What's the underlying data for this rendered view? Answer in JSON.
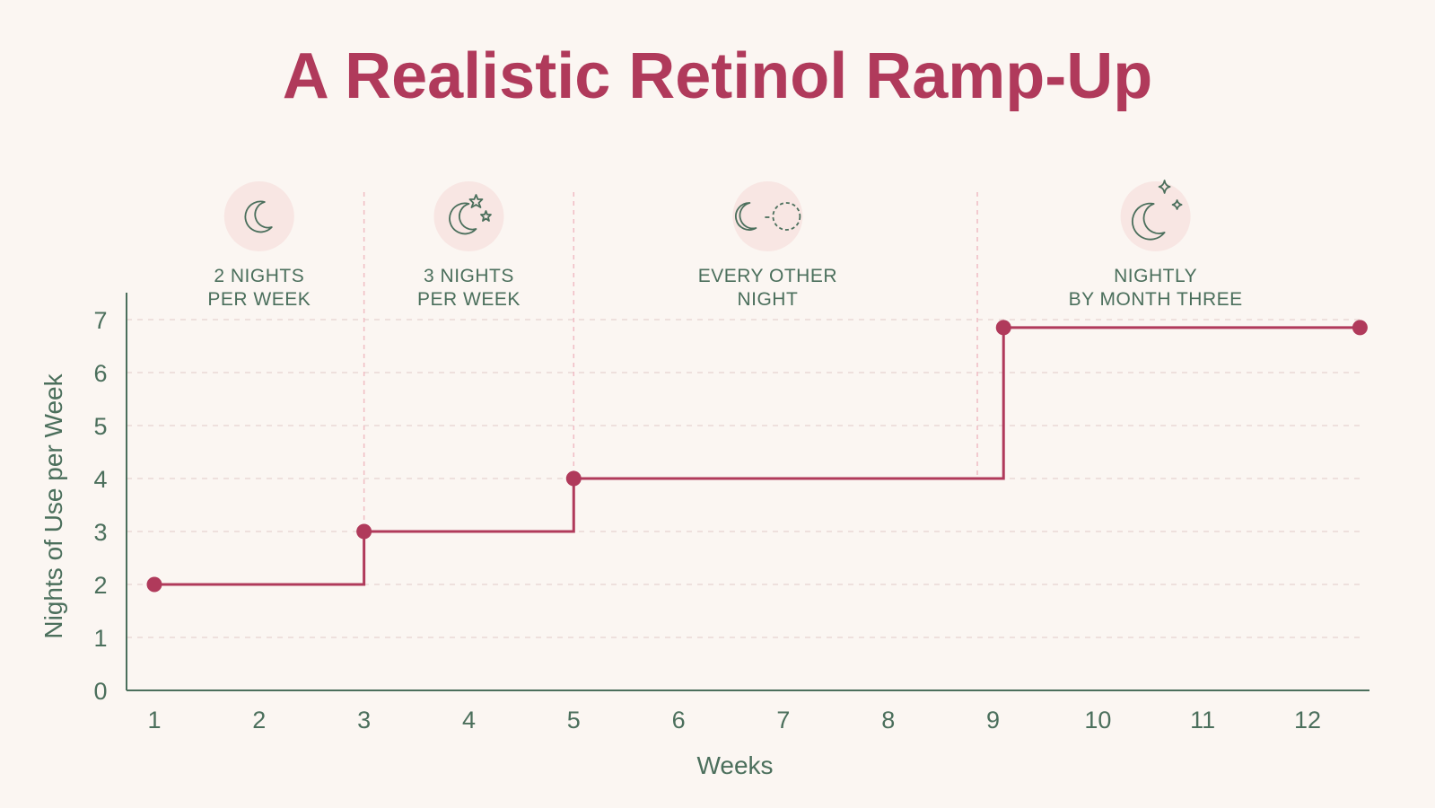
{
  "title": "A Realistic Retinol Ramp-Up",
  "colors": {
    "background": "#fbf6f2",
    "accent": "#b03a5b",
    "text": "#4b6f5c",
    "icon_circle": "#f8e6e3",
    "grid": "#ead8d6",
    "divider": "#f0bcc4"
  },
  "phases": [
    {
      "line1": "2 NIGHTS",
      "line2": "PER WEEK",
      "icon": "crescent-moon-icon",
      "center_week": 2.0
    },
    {
      "line1": "3 NIGHTS",
      "line2": "PER WEEK",
      "icon": "moon-and-stars-icon",
      "center_week": 4.0
    },
    {
      "line1": "EVERY OTHER",
      "line2": "NIGHT",
      "icon": "moon-alternating-icon",
      "center_week": 6.85
    },
    {
      "line1": "NIGHTLY",
      "line2": "BY MONTH THREE",
      "icon": "moon-sparkles-icon",
      "center_week": 10.55
    }
  ],
  "chart_data": {
    "type": "line",
    "step": "post",
    "xlabel": "Weeks",
    "ylabel": "Nights of Use per Week",
    "x_ticks": [
      1,
      2,
      3,
      4,
      5,
      6,
      7,
      8,
      9,
      10,
      11,
      12
    ],
    "y_ticks": [
      0,
      1,
      2,
      3,
      4,
      5,
      6,
      7
    ],
    "xlim": [
      0.7,
      12.6
    ],
    "ylim": [
      0,
      7
    ],
    "grid": true,
    "phase_dividers": [
      3,
      5,
      8.85
    ],
    "series": [
      {
        "points": [
          {
            "x": 1,
            "y": 2
          },
          {
            "x": 3,
            "y": 3
          },
          {
            "x": 5,
            "y": 4
          },
          {
            "x": 9.1,
            "y": 6.85
          },
          {
            "x": 12.5,
            "y": 6.85
          }
        ]
      }
    ]
  }
}
